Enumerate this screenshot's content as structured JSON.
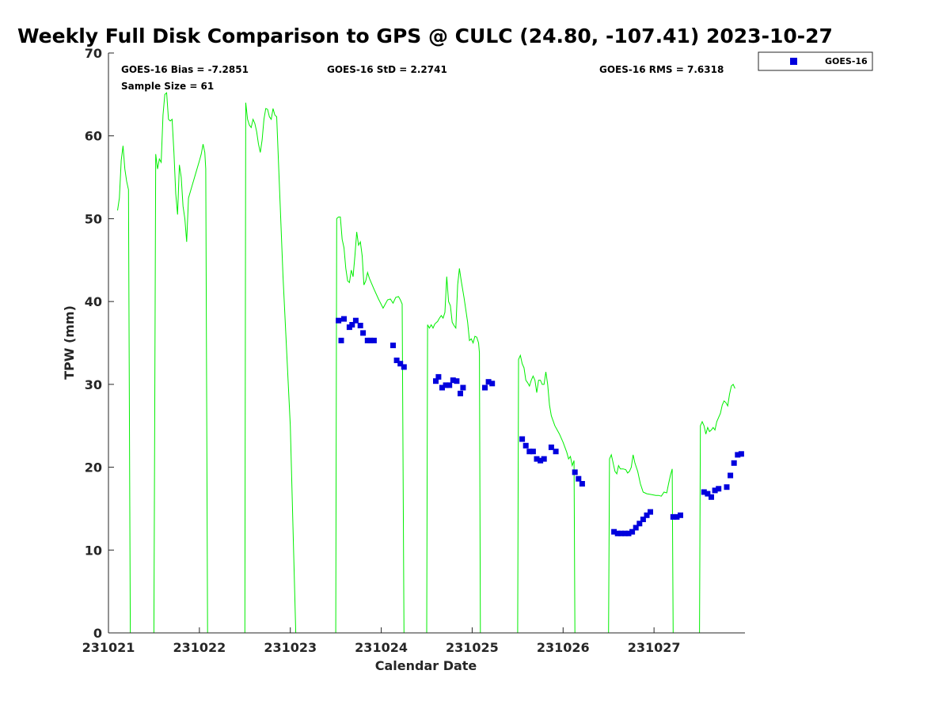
{
  "chart_data": {
    "type": "scatter",
    "title": "Weekly Full Disk Comparison to GPS @ CULC (24.80, -107.41) 2023-10-27",
    "xlabel": "Calendar Date",
    "ylabel": "TPW (mm)",
    "xlim": [
      231021,
      231028
    ],
    "ylim": [
      0,
      70
    ],
    "x_ticks": [
      "231021",
      "231022",
      "231023",
      "231024",
      "231025",
      "231026",
      "231027"
    ],
    "y_ticks": [
      "0",
      "10",
      "20",
      "30",
      "40",
      "50",
      "60",
      "70"
    ],
    "grid": false,
    "legend_position": "top-right",
    "stats": {
      "bias": "GOES-16 Bias = -7.2851",
      "std": "GOES-16 StD = 2.2741",
      "rms": "GOES-16 RMS = 7.6318",
      "sample": "Sample Size = 61"
    },
    "series": [
      {
        "name": "GOES-16",
        "marker": "square",
        "color": "#0000dd",
        "points": [
          [
            231023.53,
            37.7
          ],
          [
            231023.56,
            35.3
          ],
          [
            231023.59,
            37.9
          ],
          [
            231023.65,
            36.9
          ],
          [
            231023.68,
            37.2
          ],
          [
            231023.72,
            37.7
          ],
          [
            231023.77,
            37.1
          ],
          [
            231023.8,
            36.2
          ],
          [
            231023.85,
            35.3
          ],
          [
            231023.88,
            35.3
          ],
          [
            231023.92,
            35.3
          ],
          [
            231024.13,
            34.7
          ],
          [
            231024.17,
            32.9
          ],
          [
            231024.21,
            32.5
          ],
          [
            231024.25,
            32.1
          ],
          [
            231024.6,
            30.4
          ],
          [
            231024.63,
            30.9
          ],
          [
            231024.67,
            29.6
          ],
          [
            231024.71,
            29.9
          ],
          [
            231024.75,
            29.9
          ],
          [
            231024.79,
            30.5
          ],
          [
            231024.83,
            30.4
          ],
          [
            231024.87,
            28.9
          ],
          [
            231024.9,
            29.6
          ],
          [
            231025.14,
            29.6
          ],
          [
            231025.18,
            30.3
          ],
          [
            231025.22,
            30.1
          ],
          [
            231025.55,
            23.4
          ],
          [
            231025.59,
            22.6
          ],
          [
            231025.63,
            21.9
          ],
          [
            231025.67,
            21.9
          ],
          [
            231025.71,
            21.0
          ],
          [
            231025.75,
            20.8
          ],
          [
            231025.79,
            21.0
          ],
          [
            231025.87,
            22.4
          ],
          [
            231025.92,
            21.9
          ],
          [
            231026.13,
            19.4
          ],
          [
            231026.17,
            18.6
          ],
          [
            231026.21,
            18.0
          ],
          [
            231026.56,
            12.2
          ],
          [
            231026.6,
            12.0
          ],
          [
            231026.64,
            12.0
          ],
          [
            231026.68,
            12.0
          ],
          [
            231026.72,
            12.0
          ],
          [
            231026.76,
            12.2
          ],
          [
            231026.8,
            12.7
          ],
          [
            231026.84,
            13.2
          ],
          [
            231026.88,
            13.7
          ],
          [
            231026.92,
            14.2
          ],
          [
            231026.96,
            14.6
          ],
          [
            231027.21,
            14.0
          ],
          [
            231027.25,
            14.0
          ],
          [
            231027.29,
            14.2
          ],
          [
            231027.55,
            17.0
          ],
          [
            231027.59,
            16.8
          ],
          [
            231027.63,
            16.4
          ],
          [
            231027.67,
            17.2
          ],
          [
            231027.71,
            17.4
          ],
          [
            231027.8,
            17.6
          ],
          [
            231027.84,
            19.0
          ],
          [
            231027.88,
            20.5
          ],
          [
            231027.92,
            21.5
          ],
          [
            231027.96,
            21.6
          ]
        ]
      },
      {
        "name": "GPS",
        "type": "line",
        "color": "#00ee00",
        "show_in_legend": false,
        "points": [
          [
            231021.1,
            51
          ],
          [
            231021.12,
            52.5
          ],
          [
            231021.14,
            57
          ],
          [
            231021.16,
            58.8
          ],
          [
            231021.18,
            56
          ],
          [
            231021.2,
            54.5
          ],
          [
            231021.22,
            53.5
          ],
          [
            231021.24,
            0
          ],
          [
            231021.5,
            0
          ],
          [
            231021.52,
            57.8
          ],
          [
            231021.54,
            56
          ],
          [
            231021.56,
            57.2
          ],
          [
            231021.58,
            56.8
          ],
          [
            231021.6,
            62.5
          ],
          [
            231021.62,
            65
          ],
          [
            231021.64,
            65.2
          ],
          [
            231021.66,
            62
          ],
          [
            231021.68,
            61.8
          ],
          [
            231021.7,
            62
          ],
          [
            231021.72,
            58
          ],
          [
            231021.74,
            53
          ],
          [
            231021.76,
            50.5
          ],
          [
            231021.78,
            56.5
          ],
          [
            231021.8,
            55
          ],
          [
            231021.82,
            51.5
          ],
          [
            231021.84,
            50
          ],
          [
            231021.86,
            47.2
          ],
          [
            231021.88,
            52.5
          ],
          [
            231021.92,
            54
          ],
          [
            231021.96,
            55.5
          ],
          [
            231022.0,
            57
          ],
          [
            231022.02,
            57.8
          ],
          [
            231022.04,
            59
          ],
          [
            231022.06,
            58
          ],
          [
            231022.07,
            56
          ],
          [
            231022.09,
            0
          ],
          [
            231022.5,
            0
          ],
          [
            231022.51,
            64
          ],
          [
            231022.53,
            62
          ],
          [
            231022.55,
            61.3
          ],
          [
            231022.57,
            61
          ],
          [
            231022.59,
            62
          ],
          [
            231022.61,
            61.5
          ],
          [
            231022.63,
            60.5
          ],
          [
            231022.65,
            59
          ],
          [
            231022.67,
            58
          ],
          [
            231022.69,
            59.5
          ],
          [
            231022.71,
            62
          ],
          [
            231022.73,
            63.3
          ],
          [
            231022.75,
            63.2
          ],
          [
            231022.77,
            62.3
          ],
          [
            231022.79,
            62
          ],
          [
            231022.81,
            63.3
          ],
          [
            231022.83,
            62.5
          ],
          [
            231022.85,
            62.3
          ],
          [
            231022.92,
            43
          ],
          [
            231023.0,
            25
          ],
          [
            231023.06,
            0
          ],
          [
            231023.5,
            0
          ],
          [
            231023.51,
            50
          ],
          [
            231023.53,
            50.2
          ],
          [
            231023.55,
            50.2
          ],
          [
            231023.57,
            47.5
          ],
          [
            231023.59,
            46.5
          ],
          [
            231023.61,
            44
          ],
          [
            231023.63,
            42.5
          ],
          [
            231023.65,
            42.3
          ],
          [
            231023.67,
            43.8
          ],
          [
            231023.69,
            43
          ],
          [
            231023.71,
            45.5
          ],
          [
            231023.73,
            48.4
          ],
          [
            231023.75,
            46.8
          ],
          [
            231023.77,
            47.2
          ],
          [
            231023.79,
            45.5
          ],
          [
            231023.81,
            42
          ],
          [
            231023.83,
            42.5
          ],
          [
            231023.85,
            43.5
          ],
          [
            231023.87,
            42.8
          ],
          [
            231023.92,
            41.5
          ],
          [
            231023.97,
            40.3
          ],
          [
            231024.02,
            39.2
          ],
          [
            231024.07,
            40.2
          ],
          [
            231024.1,
            40.3
          ],
          [
            231024.13,
            39.8
          ],
          [
            231024.16,
            40.5
          ],
          [
            231024.19,
            40.6
          ],
          [
            231024.21,
            40.2
          ],
          [
            231024.23,
            39.7
          ],
          [
            231024.25,
            0
          ],
          [
            231024.5,
            0
          ],
          [
            231024.51,
            37.2
          ],
          [
            231024.53,
            36.8
          ],
          [
            231024.55,
            37.2
          ],
          [
            231024.57,
            36.8
          ],
          [
            231024.59,
            37.3
          ],
          [
            231024.62,
            37.6
          ],
          [
            231024.64,
            38
          ],
          [
            231024.66,
            38.3
          ],
          [
            231024.68,
            38
          ],
          [
            231024.7,
            38.7
          ],
          [
            231024.72,
            43
          ],
          [
            231024.74,
            40
          ],
          [
            231024.76,
            39.5
          ],
          [
            231024.78,
            37.5
          ],
          [
            231024.8,
            37.1
          ],
          [
            231024.82,
            36.8
          ],
          [
            231024.84,
            42
          ],
          [
            231024.86,
            44
          ],
          [
            231024.88,
            42.5
          ],
          [
            231024.91,
            40.5
          ],
          [
            231024.93,
            39
          ],
          [
            231024.95,
            37.5
          ],
          [
            231024.97,
            35.3
          ],
          [
            231024.99,
            35.5
          ],
          [
            231025.01,
            35
          ],
          [
            231025.03,
            35.8
          ],
          [
            231025.05,
            35.7
          ],
          [
            231025.07,
            35
          ],
          [
            231025.08,
            33.8
          ],
          [
            231025.09,
            0
          ],
          [
            231025.5,
            0
          ],
          [
            231025.51,
            33
          ],
          [
            231025.53,
            33.5
          ],
          [
            231025.55,
            32.5
          ],
          [
            231025.57,
            32
          ],
          [
            231025.59,
            30.5
          ],
          [
            231025.61,
            30.2
          ],
          [
            231025.63,
            29.8
          ],
          [
            231025.65,
            30.5
          ],
          [
            231025.67,
            31
          ],
          [
            231025.69,
            30.5
          ],
          [
            231025.71,
            29
          ],
          [
            231025.73,
            30.5
          ],
          [
            231025.75,
            30.5
          ],
          [
            231025.77,
            30
          ],
          [
            231025.79,
            30
          ],
          [
            231025.81,
            31.5
          ],
          [
            231025.83,
            30
          ],
          [
            231025.85,
            27.5
          ],
          [
            231025.87,
            26.2
          ],
          [
            231025.91,
            25
          ],
          [
            231025.96,
            24
          ],
          [
            231026.0,
            23
          ],
          [
            231026.04,
            21.8
          ],
          [
            231026.06,
            21
          ],
          [
            231026.08,
            21.3
          ],
          [
            231026.1,
            20.2
          ],
          [
            231026.12,
            20.8
          ],
          [
            231026.13,
            0
          ],
          [
            231026.5,
            0
          ],
          [
            231026.51,
            21
          ],
          [
            231026.53,
            21.5
          ],
          [
            231026.55,
            20.5
          ],
          [
            231026.57,
            19.5
          ],
          [
            231026.59,
            19.2
          ],
          [
            231026.61,
            20.2
          ],
          [
            231026.63,
            19.8
          ],
          [
            231026.66,
            19.8
          ],
          [
            231026.69,
            19.7
          ],
          [
            231026.71,
            19.3
          ],
          [
            231026.73,
            19.5
          ],
          [
            231026.75,
            20
          ],
          [
            231026.77,
            21.5
          ],
          [
            231026.79,
            20.5
          ],
          [
            231026.82,
            19.5
          ],
          [
            231026.85,
            18
          ],
          [
            231026.88,
            17
          ],
          [
            231026.92,
            16.8
          ],
          [
            231026.97,
            16.7
          ],
          [
            231027.02,
            16.6
          ],
          [
            231027.05,
            16.6
          ],
          [
            231027.08,
            16.5
          ],
          [
            231027.11,
            17
          ],
          [
            231027.14,
            16.9
          ],
          [
            231027.16,
            18
          ],
          [
            231027.18,
            19
          ],
          [
            231027.2,
            19.8
          ],
          [
            231027.21,
            0
          ],
          [
            231027.5,
            0
          ],
          [
            231027.51,
            25
          ],
          [
            231027.53,
            25.5
          ],
          [
            231027.55,
            25
          ],
          [
            231027.57,
            24
          ],
          [
            231027.59,
            24.8
          ],
          [
            231027.61,
            24.3
          ],
          [
            231027.63,
            24.5
          ],
          [
            231027.65,
            24.8
          ],
          [
            231027.67,
            24.5
          ],
          [
            231027.69,
            25.5
          ],
          [
            231027.71,
            26
          ],
          [
            231027.73,
            26.5
          ],
          [
            231027.75,
            27.5
          ],
          [
            231027.77,
            28
          ],
          [
            231027.79,
            27.8
          ],
          [
            231027.81,
            27.4
          ],
          [
            231027.83,
            28.8
          ],
          [
            231027.85,
            29.8
          ],
          [
            231027.87,
            30
          ],
          [
            231027.89,
            29.5
          ]
        ]
      }
    ]
  }
}
